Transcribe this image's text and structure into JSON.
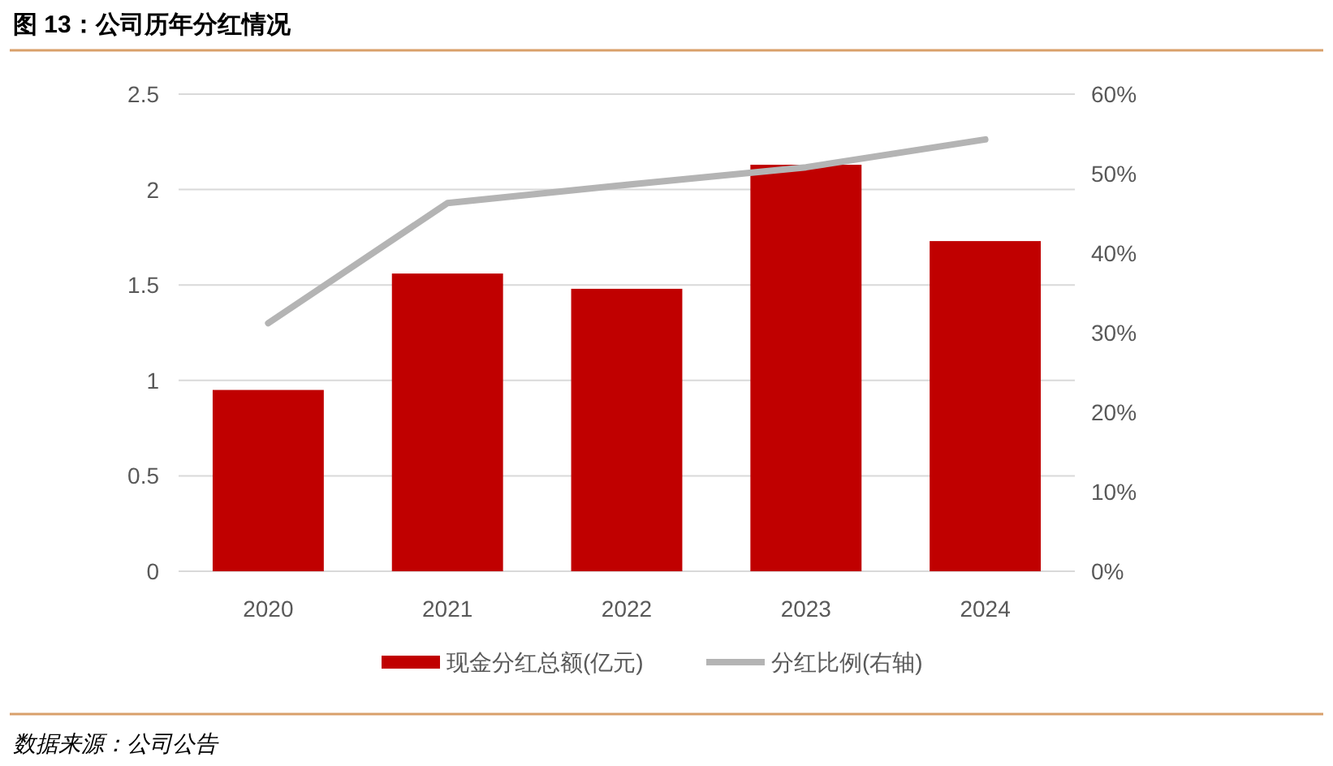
{
  "chart_data": {
    "type": "bar",
    "title": "图 13：公司历年分红情况",
    "categories": [
      "2020",
      "2021",
      "2022",
      "2023",
      "2024"
    ],
    "series": [
      {
        "name": "现金分红总额(亿元)",
        "color": "#c00000",
        "values": [
          0.95,
          1.56,
          1.48,
          2.13,
          1.73
        ]
      },
      {
        "name": "分红比例(右轴)",
        "type": "line",
        "axis": "y2",
        "color": "#b4b4b4",
        "values": [
          31.2,
          46.3,
          48.6,
          50.8,
          54.3
        ]
      }
    ],
    "ylim": [
      0,
      2.5
    ],
    "yticks": [
      0,
      0.5,
      1,
      1.5,
      2,
      2.5
    ],
    "y2lim": [
      0,
      60
    ],
    "y2ticks": [
      {
        "value": 0,
        "label": "0%"
      },
      {
        "value": 10,
        "label": "10%"
      },
      {
        "value": 20,
        "label": "20%"
      },
      {
        "value": 30,
        "label": "30%"
      },
      {
        "value": 40,
        "label": "40%"
      },
      {
        "value": 50,
        "label": "50%"
      },
      {
        "value": 60,
        "label": "60%"
      }
    ],
    "grid": "y",
    "legend": "bottom",
    "marker": "none",
    "annotations": [
      "数据来源：公司公告"
    ]
  }
}
